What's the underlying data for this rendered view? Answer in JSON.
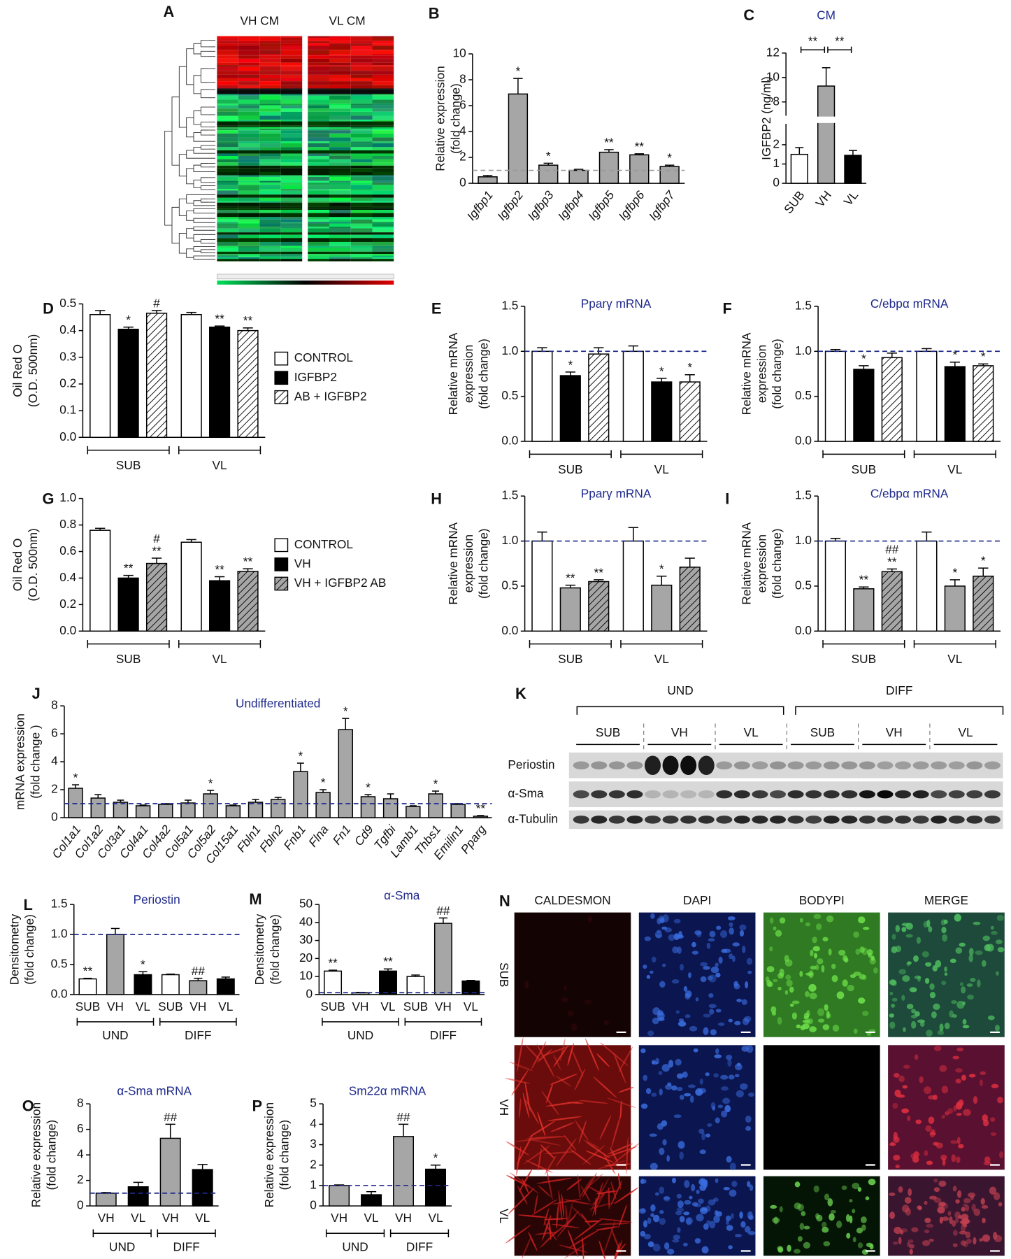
{
  "chart_data": [
    {
      "type": "bar",
      "panel": "B",
      "ylabel": [
        "Relative expression",
        "(fold change)"
      ],
      "categories": [
        "Igfbp1",
        "Igfbp2",
        "Igfbp3",
        "Igfbp4",
        "Igfbp5",
        "Igfbp6",
        "Igfbp7"
      ],
      "values": [
        0.5,
        6.9,
        1.4,
        1.0,
        2.4,
        2.2,
        1.3
      ],
      "errors": [
        0.1,
        1.2,
        0.15,
        0.08,
        0.2,
        0.08,
        0.1
      ],
      "color": "#a6a6a6",
      "annotations": [
        null,
        "*",
        "*",
        null,
        "**",
        "**",
        "*"
      ],
      "ref_line": 1,
      "ref_line_color": "#999999",
      "ylim": [
        0,
        10
      ],
      "yticks": [
        0,
        2,
        4,
        6,
        8,
        10
      ]
    },
    {
      "type": "bar",
      "panel": "C",
      "title": "CM",
      "ylabel": [
        "IGFBP2 (ng/ml)"
      ],
      "categories": [
        "SUB",
        "VH",
        "VL"
      ],
      "values": [
        1.5,
        9.3,
        1.45
      ],
      "errors": [
        0.35,
        1.5,
        0.25
      ],
      "colors": [
        "#ffffff",
        "#a6a6a6",
        "#000000"
      ],
      "comparisons": [
        {
          "bars": [
            0,
            1
          ],
          "label": "**"
        },
        {
          "bars": [
            1,
            2
          ],
          "label": "**"
        }
      ],
      "ylim": [
        0,
        12
      ],
      "axis_break": [
        3,
        7
      ],
      "yticks": [
        0,
        1,
        2,
        8,
        10,
        12
      ]
    },
    {
      "type": "bar",
      "panel": "D",
      "ylabel": [
        "Oil Red O",
        "(O.D. 500nm)"
      ],
      "categories": [
        "SUB",
        "VL"
      ],
      "series": [
        {
          "name": "CONTROL",
          "color": "#ffffff",
          "values": [
            0.46,
            0.46
          ],
          "errors": [
            0.015,
            0.008
          ]
        },
        {
          "name": "IGFBP2",
          "color": "#000000",
          "values": [
            0.405,
            0.413
          ],
          "errors": [
            0.008,
            0.004
          ],
          "annotations": [
            "*",
            "**"
          ]
        },
        {
          "name": "AB + IGFBP2",
          "color": "#ffffff",
          "hatch": true,
          "values": [
            0.465,
            0.4
          ],
          "errors": [
            0.01,
            0.01
          ],
          "annotations": [
            "#",
            "**"
          ]
        }
      ],
      "ylim": [
        0,
        0.5
      ],
      "yticks": [
        {
          "value": 0,
          "label": "0.0"
        },
        0.1,
        0.2,
        0.3,
        0.4,
        0.5
      ]
    },
    {
      "type": "bar",
      "panel": "E",
      "title": "Pparγ mRNA",
      "ylabel": [
        "Relative mRNA",
        "expression",
        "(fold change)"
      ],
      "categories": [
        "SUB",
        "VL"
      ],
      "series": [
        {
          "color": "#ffffff",
          "values": [
            1.0,
            1.0
          ],
          "errors": [
            0.04,
            0.06
          ]
        },
        {
          "color": "#000000",
          "values": [
            0.73,
            0.66
          ],
          "errors": [
            0.04,
            0.04
          ],
          "annotations": [
            "*",
            "*"
          ]
        },
        {
          "color": "#ffffff",
          "hatch": true,
          "values": [
            0.97,
            0.66
          ],
          "errors": [
            0.07,
            0.08
          ],
          "annotations": [
            null,
            "*"
          ]
        }
      ],
      "ref_line": 1,
      "ref_line_color": "#1f2a8c",
      "ylim": [
        0,
        1.5
      ],
      "yticks": [
        {
          "value": 0,
          "label": "0.0"
        },
        0.5,
        {
          "value": 1,
          "label": "1.0"
        },
        1.5
      ]
    },
    {
      "type": "bar",
      "panel": "F",
      "title": "C/ebpα mRNA",
      "ylabel": [
        "Relative mRNA",
        "expression",
        "(fold change)"
      ],
      "categories": [
        "SUB",
        "VL"
      ],
      "series": [
        {
          "color": "#ffffff",
          "values": [
            1.0,
            1.0
          ],
          "errors": [
            0.02,
            0.03
          ]
        },
        {
          "color": "#000000",
          "values": [
            0.8,
            0.83
          ],
          "errors": [
            0.04,
            0.05
          ],
          "annotations": [
            "*",
            "*"
          ]
        },
        {
          "color": "#ffffff",
          "hatch": true,
          "values": [
            0.93,
            0.84
          ],
          "errors": [
            0.05,
            0.02
          ],
          "annotations": [
            null,
            "*"
          ]
        }
      ],
      "ref_line": 1,
      "ref_line_color": "#1f2a8c",
      "ylim": [
        0,
        1.5
      ],
      "yticks": [
        {
          "value": 0,
          "label": "0.0"
        },
        0.5,
        {
          "value": 1,
          "label": "1.0"
        },
        1.5
      ]
    },
    {
      "type": "bar",
      "panel": "G",
      "ylabel": [
        "Oil Red O",
        "(O.D. 500nm)"
      ],
      "categories": [
        "SUB",
        "VL"
      ],
      "series": [
        {
          "name": "CONTROL",
          "color": "#ffffff",
          "values": [
            0.76,
            0.67
          ],
          "errors": [
            0.015,
            0.02
          ]
        },
        {
          "name": "VH",
          "color": "#000000",
          "values": [
            0.4,
            0.38
          ],
          "errors": [
            0.02,
            0.03
          ],
          "annotations": [
            "**",
            "**"
          ]
        },
        {
          "name": "VH + IGFBP2 AB",
          "color": "#a6a6a6",
          "hatch": true,
          "values": [
            0.51,
            0.45
          ],
          "errors": [
            0.04,
            0.02
          ],
          "annotations": [
            [
              "#",
              "**"
            ],
            "**"
          ]
        }
      ],
      "ylim": [
        0,
        1
      ],
      "yticks": [
        {
          "value": 0,
          "label": "0.0"
        },
        0.2,
        0.4,
        0.6,
        0.8,
        {
          "value": 1,
          "label": "1.0"
        }
      ]
    },
    {
      "type": "bar",
      "panel": "H",
      "title": "Pparγ mRNA",
      "ylabel": [
        "Relative mRNA",
        "expression",
        "(fold change)"
      ],
      "categories": [
        "SUB",
        "VL"
      ],
      "series": [
        {
          "color": "#ffffff",
          "values": [
            1.0,
            1.0
          ],
          "errors": [
            0.1,
            0.15
          ]
        },
        {
          "color": "#a6a6a6",
          "values": [
            0.48,
            0.51
          ],
          "errors": [
            0.03,
            0.1
          ],
          "annotations": [
            "**",
            "*"
          ]
        },
        {
          "color": "#a6a6a6",
          "hatch": true,
          "values": [
            0.55,
            0.71
          ],
          "errors": [
            0.02,
            0.1
          ],
          "annotations": [
            "**",
            null
          ]
        }
      ],
      "ref_line": 1,
      "ref_line_color": "#1f2a8c",
      "ylim": [
        0,
        1.5
      ],
      "yticks": [
        {
          "value": 0,
          "label": "0.0"
        },
        0.5,
        {
          "value": 1,
          "label": "1.0"
        },
        1.5
      ]
    },
    {
      "type": "bar",
      "panel": "I",
      "title": "C/ebpα mRNA",
      "ylabel": [
        "Relative mRNA",
        "expression",
        "(fold change)"
      ],
      "categories": [
        "SUB",
        "VL"
      ],
      "series": [
        {
          "color": "#ffffff",
          "values": [
            1.0,
            1.0
          ],
          "errors": [
            0.03,
            0.1
          ]
        },
        {
          "color": "#a6a6a6",
          "values": [
            0.47,
            0.5
          ],
          "errors": [
            0.02,
            0.07
          ],
          "annotations": [
            "**",
            "*"
          ]
        },
        {
          "color": "#a6a6a6",
          "hatch": true,
          "values": [
            0.66,
            0.61
          ],
          "errors": [
            0.03,
            0.09
          ],
          "annotations": [
            [
              "##",
              "**"
            ],
            "*"
          ]
        }
      ],
      "ref_line": 1,
      "ref_line_color": "#1f2a8c",
      "ylim": [
        0,
        1.5
      ],
      "yticks": [
        {
          "value": 0,
          "label": "0.0"
        },
        0.5,
        {
          "value": 1,
          "label": "1.0"
        },
        1.5
      ]
    },
    {
      "type": "bar",
      "panel": "J",
      "title": "Undifferentiated",
      "ylabel": [
        "mRNA expression",
        "(fold change )"
      ],
      "categories": [
        "Col1a1",
        "Col1a2",
        "Col3a1",
        "Col4a1",
        "Col4a2",
        "Col5a1",
        "Col5a2",
        "Col15a1",
        "Fbln1",
        "Fbln2",
        "Fnb1",
        "Flna",
        "Fn1",
        "Cd9",
        "Tgfbi",
        "Lamb1",
        "Thbs1",
        "Emilin1",
        "Pparg"
      ],
      "values": [
        2.1,
        1.4,
        1.1,
        0.85,
        0.95,
        1.05,
        1.7,
        0.85,
        1.1,
        1.3,
        3.3,
        1.8,
        6.3,
        1.5,
        1.35,
        0.8,
        1.7,
        0.95,
        0.1
      ],
      "errors": [
        0.25,
        0.25,
        0.15,
        0.05,
        0.05,
        0.2,
        0.25,
        0.05,
        0.2,
        0.15,
        0.6,
        0.2,
        0.8,
        0.15,
        0.35,
        0.05,
        0.2,
        0.05,
        0.05
      ],
      "color": "#a6a6a6",
      "annotations": [
        "*",
        null,
        null,
        null,
        null,
        null,
        "*",
        null,
        null,
        null,
        "*",
        "*",
        "*",
        "*",
        null,
        null,
        "*",
        null,
        "**"
      ],
      "ref_line": 1,
      "ref_line_color": "#1f2a8c",
      "ylim": [
        0,
        8
      ],
      "yticks": [
        0,
        2,
        4,
        6,
        8
      ]
    },
    {
      "type": "bar",
      "panel": "L",
      "title": "Periostin",
      "ylabel": [
        "Densitometry",
        "(fold change)"
      ],
      "categories": [
        "SUB",
        "VH",
        "VL",
        "SUB",
        "VH",
        "VL"
      ],
      "group_labels": [
        "UND",
        "DIFF"
      ],
      "values": [
        0.26,
        1.0,
        0.33,
        0.33,
        0.23,
        0.26
      ],
      "errors": [
        0.01,
        0.1,
        0.05,
        0.01,
        0.04,
        0.03
      ],
      "colors": [
        "#ffffff",
        "#a6a6a6",
        "#000000",
        "#ffffff",
        "#a6a6a6",
        "#000000"
      ],
      "annotations": [
        "**",
        null,
        "*",
        null,
        "##",
        null
      ],
      "ref_line": 1,
      "ref_line_color": "#1f2a8c",
      "ylim": [
        0,
        1.5
      ],
      "yticks": [
        {
          "value": 0,
          "label": "0.0"
        },
        0.5,
        {
          "value": 1,
          "label": "1.0"
        },
        1.5
      ]
    },
    {
      "type": "bar",
      "panel": "M",
      "title": "α-Sma",
      "ylabel": [
        "Densitometry",
        "(fold change)"
      ],
      "categories": [
        "SUB",
        "VH",
        "VL",
        "SUB",
        "VH",
        "VL"
      ],
      "group_labels": [
        "UND",
        "DIFF"
      ],
      "values": [
        13,
        1,
        13,
        10,
        39.5,
        7.5
      ],
      "errors": [
        0.5,
        0.2,
        1.2,
        0.8,
        3,
        0.3
      ],
      "colors": [
        "#ffffff",
        "#a6a6a6",
        "#000000",
        "#ffffff",
        "#a6a6a6",
        "#000000"
      ],
      "annotations": [
        "**",
        null,
        "**",
        null,
        "##",
        null
      ],
      "ref_line": 1,
      "ref_line_color": "#1f2a8c",
      "ylim": [
        0,
        50
      ],
      "yticks": [
        0,
        10,
        20,
        30,
        40,
        50
      ]
    },
    {
      "type": "bar",
      "panel": "O",
      "title": "α-Sma mRNA",
      "ylabel": [
        "Relative expression",
        "(fold change)"
      ],
      "categories": [
        "VH",
        "VL",
        "VH",
        "VL"
      ],
      "group_labels": [
        "UND",
        "DIFF"
      ],
      "values": [
        1.0,
        1.5,
        5.3,
        2.85
      ],
      "errors": [
        0.05,
        0.35,
        1.1,
        0.4
      ],
      "colors": [
        "#a6a6a6",
        "#000000",
        "#a6a6a6",
        "#000000"
      ],
      "annotations": [
        null,
        null,
        "##",
        null
      ],
      "ref_line": 1,
      "ref_line_color": "#1f2a8c",
      "ylim": [
        0,
        8
      ],
      "yticks": [
        0,
        2,
        4,
        6,
        8
      ]
    },
    {
      "type": "bar",
      "panel": "P",
      "title": "Sm22α mRNA",
      "ylabel": [
        "Relative expression",
        "(fold change)"
      ],
      "categories": [
        "VH",
        "VL",
        "VH",
        "VL"
      ],
      "group_labels": [
        "UND",
        "DIFF"
      ],
      "values": [
        1.0,
        0.55,
        3.4,
        1.8
      ],
      "errors": [
        0.03,
        0.15,
        0.6,
        0.2
      ],
      "colors": [
        "#a6a6a6",
        "#000000",
        "#a6a6a6",
        "#000000"
      ],
      "annotations": [
        null,
        null,
        "##",
        "*"
      ],
      "ref_line": 1,
      "ref_line_color": "#1f2a8c",
      "ylim": [
        0,
        5
      ],
      "yticks": [
        0,
        1,
        2,
        3,
        4,
        5
      ]
    }
  ],
  "heatmap": {
    "panel": "A",
    "columns": [
      "VH CM",
      "VL CM"
    ]
  },
  "blot": {
    "panel": "K",
    "groups": [
      "UND",
      "DIFF"
    ],
    "lanes": [
      "SUB",
      "VH",
      "VL",
      "SUB",
      "VH",
      "VL"
    ],
    "rows": [
      "Periostin",
      "α-Sma",
      "α-Tubulin"
    ]
  },
  "micrographs": {
    "panel": "N",
    "columns": [
      {
        "label": "CALDESMON",
        "color": "#e8241c"
      },
      {
        "label": "DAPI",
        "color": "#1f5fc8"
      },
      {
        "label": "BODYPI",
        "color": "#1a9a2a"
      },
      {
        "label": "MERGE",
        "color": "#000000"
      }
    ],
    "rows": [
      "SUB",
      "VH",
      "VL"
    ]
  }
}
